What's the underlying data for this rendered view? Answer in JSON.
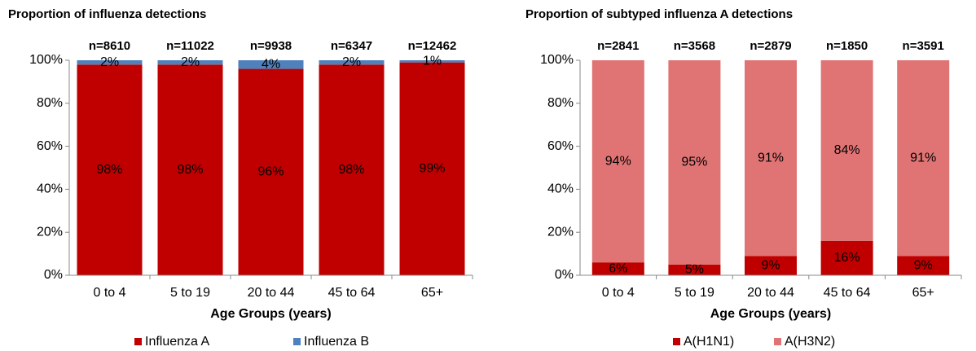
{
  "chart_data": [
    {
      "type": "bar",
      "stacked": true,
      "title": "Proportion of influenza detections",
      "categories": [
        "0 to 4",
        "5 to 19",
        "20 to 44",
        "45 to 64",
        "65+"
      ],
      "annotations": [
        "n=8610",
        "n=11022",
        "n=9938",
        "n=6347",
        "n=12462"
      ],
      "series": [
        {
          "name": "Influenza A",
          "color": "#c00000",
          "values": [
            98,
            98,
            96,
            98,
            99
          ],
          "value_labels": [
            "98%",
            "98%",
            "96%",
            "98%",
            "99%"
          ]
        },
        {
          "name": "Influenza B",
          "color": "#4f81bd",
          "values": [
            2,
            2,
            4,
            2,
            1
          ],
          "value_labels": [
            "2%",
            "2%",
            "4%",
            "2%",
            "1%"
          ]
        }
      ],
      "xlabel": "Age Groups (years)",
      "ylim": [
        0,
        100
      ],
      "yticks": [
        {
          "value": 0,
          "label": "0%"
        },
        {
          "value": 20,
          "label": "20%"
        },
        {
          "value": 40,
          "label": "40%"
        },
        {
          "value": 60,
          "label": "60%"
        },
        {
          "value": 80,
          "label": "80%"
        },
        {
          "value": 100,
          "label": "100%"
        }
      ],
      "grid": false,
      "legend": "bottom"
    },
    {
      "type": "bar",
      "stacked": true,
      "title": "Proportion of subtyped influenza A detections",
      "categories": [
        "0 to 4",
        "5 to 19",
        "20 to 44",
        "45 to 64",
        "65+"
      ],
      "annotations": [
        "n=2841",
        "n=3568",
        "n=2879",
        "n=1850",
        "n=3591"
      ],
      "series": [
        {
          "name": "A(H1N1)",
          "color": "#c00000",
          "values": [
            6,
            5,
            9,
            16,
            9
          ],
          "value_labels": [
            "6%",
            "5%",
            "9%",
            "16%",
            "9%"
          ]
        },
        {
          "name": "A(H3N2)",
          "color": "#e07474",
          "values": [
            94,
            95,
            91,
            84,
            91
          ],
          "value_labels": [
            "94%",
            "95%",
            "91%",
            "84%",
            "91%"
          ]
        }
      ],
      "xlabel": "Age Groups (years)",
      "ylim": [
        0,
        100
      ],
      "yticks": [
        {
          "value": 0,
          "label": "0%"
        },
        {
          "value": 20,
          "label": "20%"
        },
        {
          "value": 40,
          "label": "40%"
        },
        {
          "value": 60,
          "label": "60%"
        },
        {
          "value": 80,
          "label": "80%"
        },
        {
          "value": 100,
          "label": "100%"
        }
      ],
      "grid": false,
      "legend": "bottom"
    }
  ]
}
